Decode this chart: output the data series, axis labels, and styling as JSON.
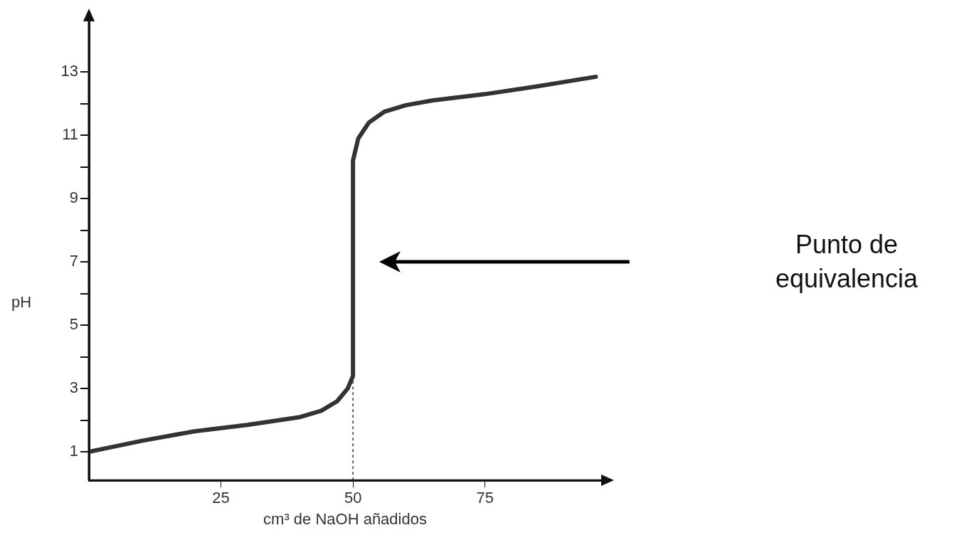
{
  "chart_data": {
    "type": "line",
    "xlabel": "cm³ de NaOH añadidos",
    "ylabel": "pH",
    "x": [
      0,
      10,
      20,
      30,
      40,
      44,
      47,
      49,
      50,
      50,
      51,
      53,
      56,
      60,
      65,
      75,
      85,
      96
    ],
    "series": [
      {
        "color": "#333333",
        "values": [
          1,
          1.35,
          1.65,
          1.85,
          2.1,
          2.3,
          2.6,
          3.0,
          3.4,
          10.2,
          10.9,
          11.4,
          11.75,
          11.95,
          12.1,
          12.3,
          12.55,
          12.85
        ]
      }
    ],
    "xlim": [
      0,
      97
    ],
    "xticks": [
      25,
      50,
      75
    ],
    "ylim": [
      0.1,
      14.6
    ],
    "yticks": [
      1,
      {
        "value": 2,
        "label": null
      },
      3,
      {
        "value": 4,
        "label": null
      },
      5,
      {
        "value": 6,
        "label": null
      },
      7,
      {
        "value": 8,
        "label": null
      },
      9,
      {
        "value": 10,
        "label": null
      },
      11,
      {
        "value": 12,
        "label": null
      },
      13
    ],
    "ref_lines": [
      {
        "axis": "x",
        "value": 50,
        "line_style": "dashed",
        "color": "#333333"
      }
    ],
    "annotations": [
      "Punto de equivalencia"
    ],
    "grid": false,
    "legend": false,
    "marker": "none",
    "line_style": "solid"
  }
}
